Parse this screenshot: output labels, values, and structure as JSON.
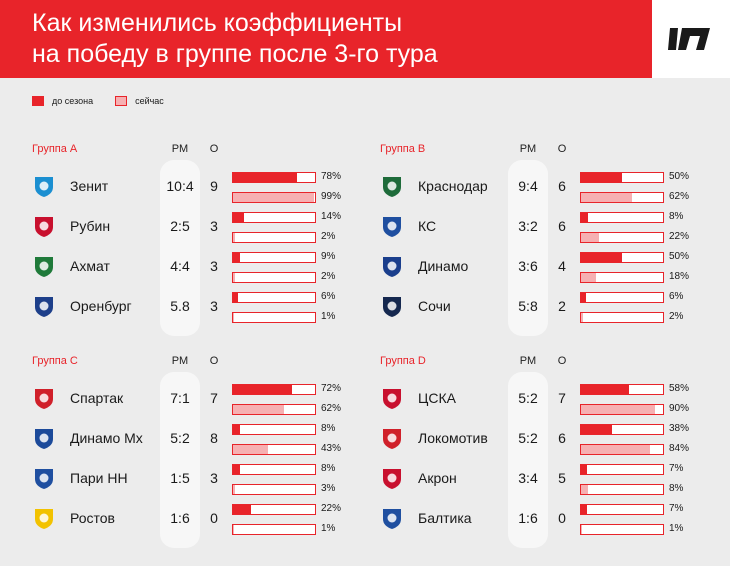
{
  "title_lines": [
    "Как изменились коэффициенты",
    "на победу в группе после 3-го тура"
  ],
  "legend": {
    "before": "до сезона",
    "now": "сейчас"
  },
  "columns": {
    "rm": "РМ",
    "o": "О"
  },
  "colors": {
    "accent": "#e8242a",
    "now_fill": "#f6b0b2",
    "background": "#ececec"
  },
  "chart_data": {
    "type": "bar",
    "series": [
      {
        "name": "до сезона"
      },
      {
        "name": "сейчас"
      }
    ],
    "groups": [
      {
        "name": "Группа A",
        "teams": [
          {
            "team": "Зенит",
            "rm": "10:4",
            "o": "9",
            "before": 78,
            "now": 99,
            "badge_color": "#1b8fd1"
          },
          {
            "team": "Рубин",
            "rm": "2:5",
            "o": "3",
            "before": 14,
            "now": 2,
            "badge_color": "#c8102e"
          },
          {
            "team": "Ахмат",
            "rm": "4:4",
            "o": "3",
            "before": 9,
            "now": 2,
            "badge_color": "#1f7a3a"
          },
          {
            "team": "Оренбург",
            "rm": "5.8",
            "o": "3",
            "before": 6,
            "now": 1,
            "badge_color": "#1d3f8a"
          }
        ]
      },
      {
        "name": "Группа B",
        "teams": [
          {
            "team": "Краснодар",
            "rm": "9:4",
            "o": "6",
            "before": 50,
            "now": 62,
            "badge_color": "#1e6b3a"
          },
          {
            "team": "КС",
            "rm": "3:2",
            "o": "6",
            "before": 8,
            "now": 22,
            "badge_color": "#1f4fa0"
          },
          {
            "team": "Динамо",
            "rm": "3:6",
            "o": "4",
            "before": 50,
            "now": 18,
            "badge_color": "#1a3e8c"
          },
          {
            "team": "Сочи",
            "rm": "5:8",
            "o": "2",
            "before": 6,
            "now": 2,
            "badge_color": "#15284f"
          }
        ]
      },
      {
        "name": "Группа C",
        "teams": [
          {
            "team": "Спартак",
            "rm": "7:1",
            "o": "7",
            "before": 72,
            "now": 62,
            "badge_color": "#d0202a"
          },
          {
            "team": "Динамо Мх",
            "rm": "5:2",
            "o": "8",
            "before": 8,
            "now": 43,
            "badge_color": "#1c4a9a"
          },
          {
            "team": "Пари НН",
            "rm": "1:5",
            "o": "3",
            "before": 8,
            "now": 3,
            "badge_color": "#1f4fa0"
          },
          {
            "team": "Ростов",
            "rm": "1:6",
            "o": "0",
            "before": 22,
            "now": 1,
            "badge_color": "#f2c200"
          }
        ]
      },
      {
        "name": "Группа D",
        "teams": [
          {
            "team": "ЦСКА",
            "rm": "5:2",
            "o": "7",
            "before": 58,
            "now": 90,
            "badge_color": "#c8102e"
          },
          {
            "team": "Локомотив",
            "rm": "5:2",
            "o": "6",
            "before": 38,
            "now": 84,
            "badge_color": "#d0202a"
          },
          {
            "team": "Акрон",
            "rm": "3:4",
            "o": "5",
            "before": 7,
            "now": 8,
            "badge_color": "#c8102e"
          },
          {
            "team": "Балтика",
            "rm": "1:6",
            "o": "0",
            "before": 7,
            "now": 1,
            "badge_color": "#1f4fa0"
          }
        ]
      }
    ]
  }
}
